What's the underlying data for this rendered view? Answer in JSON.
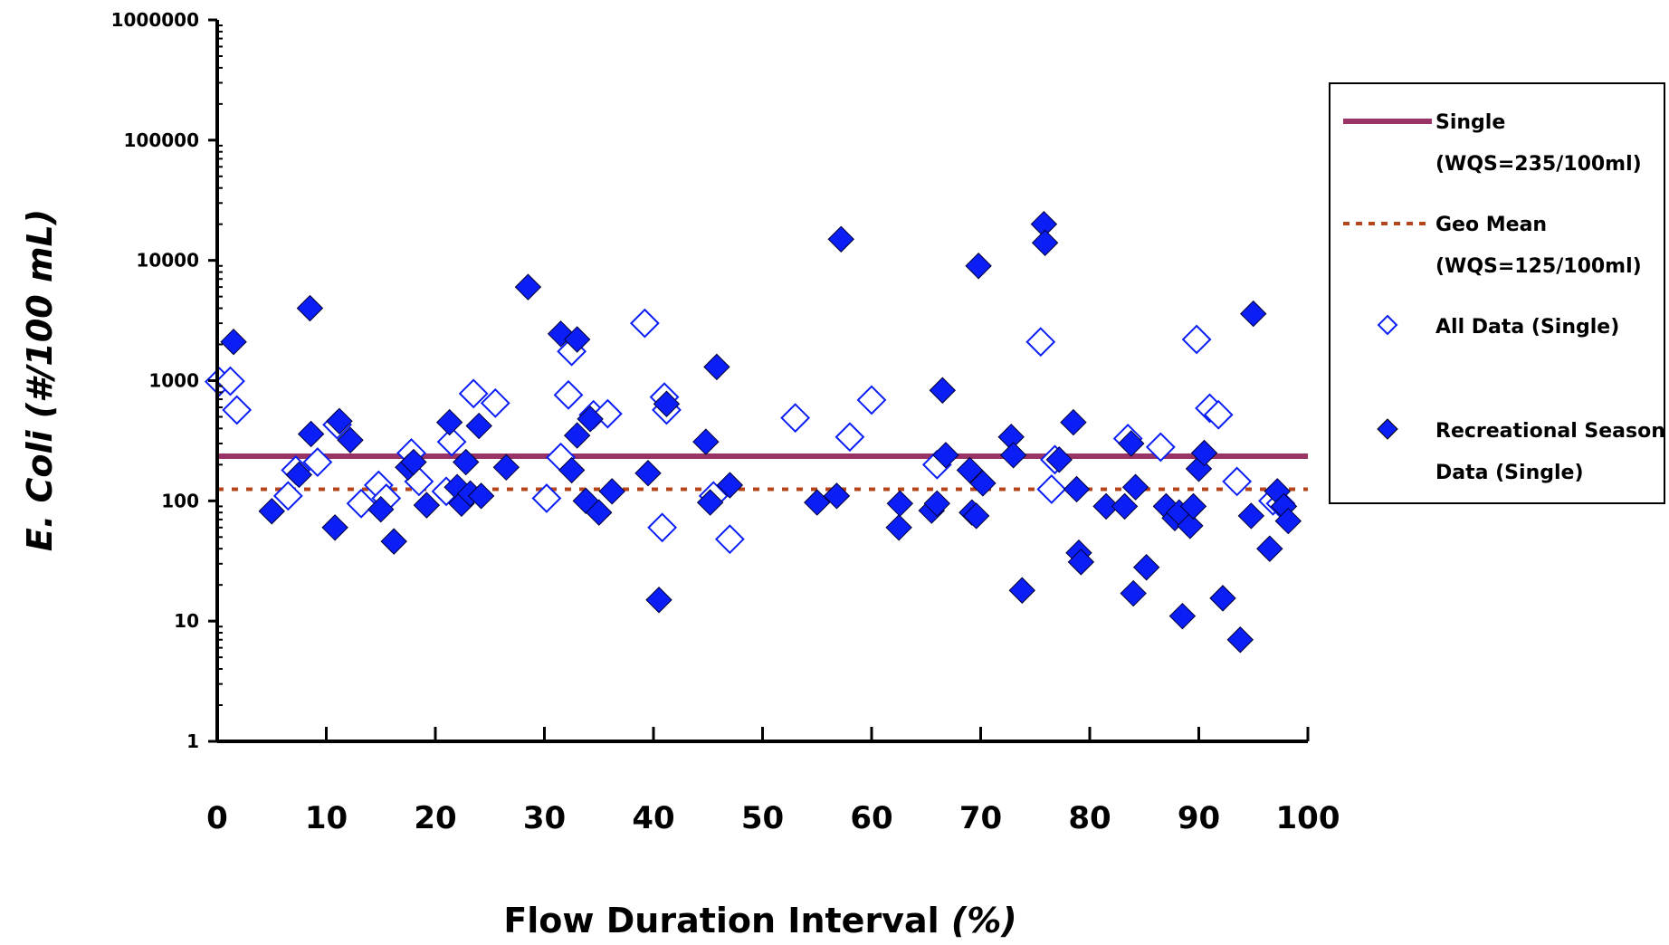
{
  "chart_data": {
    "type": "scatter",
    "ylabel": "E. Coli (#/100 mL)",
    "xlabel_main": "Flow Duration Interval ",
    "xlabel_unit": "(%)",
    "xlim": [
      0,
      100
    ],
    "ylim": [
      1,
      1000000
    ],
    "yscale": "log",
    "x_ticks": [
      "0",
      "10",
      "20",
      "30",
      "40",
      "50",
      "60",
      "70",
      "80",
      "90",
      "100"
    ],
    "y_ticks": [
      "1",
      "10",
      "100",
      "1000",
      "10000",
      "100000",
      "1000000"
    ],
    "grid": false,
    "legend_position": "right",
    "colors": {
      "single": "#993366",
      "geo_mean": "#b5451b",
      "points": "#0a1ef5"
    },
    "legend": {
      "single_line1": "Single",
      "single_line2": "(WQS=235/100ml)",
      "geo_line1": "Geo Mean",
      "geo_line2": "(WQS=125/100ml)",
      "all_data": "All Data (Single)",
      "rec_line1": "Recreational Season",
      "rec_line2": "Data (Single)"
    },
    "reference_lines": [
      {
        "name": "Single (WQS=235/100ml)",
        "y": 235,
        "style": "solid"
      },
      {
        "name": "Geo Mean (WQS=125/100ml)",
        "y": 125,
        "style": "dotted"
      }
    ],
    "series": [
      {
        "name": "All Data (Single)",
        "marker": "open-diamond",
        "points": [
          [
            0.2,
            980
          ],
          [
            1.2,
            990
          ],
          [
            1.8,
            570
          ],
          [
            6.5,
            110
          ],
          [
            7.2,
            180
          ],
          [
            9.2,
            210
          ],
          [
            11,
            430
          ],
          [
            13.2,
            95
          ],
          [
            14.8,
            135
          ],
          [
            15.5,
            105
          ],
          [
            17.8,
            250
          ],
          [
            18.5,
            145
          ],
          [
            21,
            120
          ],
          [
            21.5,
            310
          ],
          [
            23.5,
            780
          ],
          [
            25.5,
            650
          ],
          [
            30.2,
            105
          ],
          [
            31.5,
            230
          ],
          [
            32.2,
            760
          ],
          [
            32.5,
            1750
          ],
          [
            34.5,
            520
          ],
          [
            35.8,
            530
          ],
          [
            39.2,
            3000
          ],
          [
            41,
            730
          ],
          [
            41.2,
            570
          ],
          [
            40.8,
            60
          ],
          [
            45.5,
            110
          ],
          [
            47,
            48
          ],
          [
            53,
            490
          ],
          [
            58,
            340
          ],
          [
            60,
            690
          ],
          [
            66,
            200
          ],
          [
            75.5,
            2100
          ],
          [
            76.5,
            125
          ],
          [
            76.8,
            220
          ],
          [
            83.5,
            330
          ],
          [
            86.5,
            280
          ],
          [
            89.8,
            2200
          ],
          [
            91,
            590
          ],
          [
            91.8,
            520
          ],
          [
            93.5,
            145
          ],
          [
            96.8,
            100
          ],
          [
            97.5,
            95
          ]
        ]
      },
      {
        "name": "Recreational Season Data (Single)",
        "marker": "filled-diamond",
        "points": [
          [
            1.5,
            2100
          ],
          [
            5,
            82
          ],
          [
            7.5,
            165
          ],
          [
            8.5,
            4000
          ],
          [
            8.6,
            360
          ],
          [
            10.8,
            60
          ],
          [
            11.2,
            460
          ],
          [
            12.2,
            320
          ],
          [
            15,
            85
          ],
          [
            16.2,
            46
          ],
          [
            17.5,
            190
          ],
          [
            18,
            210
          ],
          [
            19.2,
            92
          ],
          [
            21.3,
            450
          ],
          [
            22,
            130
          ],
          [
            22.4,
            95
          ],
          [
            22.8,
            210
          ],
          [
            23.2,
            115
          ],
          [
            24,
            420
          ],
          [
            24.2,
            110
          ],
          [
            26.5,
            190
          ],
          [
            28.5,
            6000
          ],
          [
            31.5,
            2450
          ],
          [
            32.5,
            180
          ],
          [
            33,
            2200
          ],
          [
            33,
            350
          ],
          [
            33.8,
            100
          ],
          [
            34.2,
            480
          ],
          [
            35,
            80
          ],
          [
            36.2,
            120
          ],
          [
            39.5,
            170
          ],
          [
            40.5,
            15
          ],
          [
            41.2,
            640
          ],
          [
            44.8,
            310
          ],
          [
            45.2,
            97
          ],
          [
            45.8,
            1300
          ],
          [
            47,
            135
          ],
          [
            55,
            97
          ],
          [
            56.8,
            110
          ],
          [
            57.2,
            15000
          ],
          [
            62.5,
            60
          ],
          [
            62.6,
            95
          ],
          [
            65.5,
            83
          ],
          [
            66,
            95
          ],
          [
            66.5,
            830
          ],
          [
            66.8,
            240
          ],
          [
            69,
            180
          ],
          [
            69.2,
            80
          ],
          [
            69.6,
            75
          ],
          [
            69.8,
            9000
          ],
          [
            70.2,
            140
          ],
          [
            72.8,
            340
          ],
          [
            73,
            240
          ],
          [
            73.8,
            18
          ],
          [
            75.8,
            20000
          ],
          [
            75.9,
            14000
          ],
          [
            77.2,
            220
          ],
          [
            78.5,
            450
          ],
          [
            78.8,
            125
          ],
          [
            79,
            37
          ],
          [
            79.2,
            31
          ],
          [
            81.5,
            90
          ],
          [
            83.2,
            90
          ],
          [
            83.8,
            300
          ],
          [
            84,
            17
          ],
          [
            84.2,
            130
          ],
          [
            85.2,
            28
          ],
          [
            87,
            90
          ],
          [
            87.8,
            72
          ],
          [
            88.2,
            80
          ],
          [
            88.5,
            11
          ],
          [
            89.2,
            62
          ],
          [
            89.5,
            90
          ],
          [
            90,
            185
          ],
          [
            90.5,
            250
          ],
          [
            92.2,
            15.5
          ],
          [
            93.8,
            7
          ],
          [
            94.8,
            75
          ],
          [
            95,
            3600
          ],
          [
            96.5,
            40
          ],
          [
            97.2,
            120
          ],
          [
            97.8,
            90
          ],
          [
            98.2,
            68
          ]
        ]
      }
    ]
  }
}
